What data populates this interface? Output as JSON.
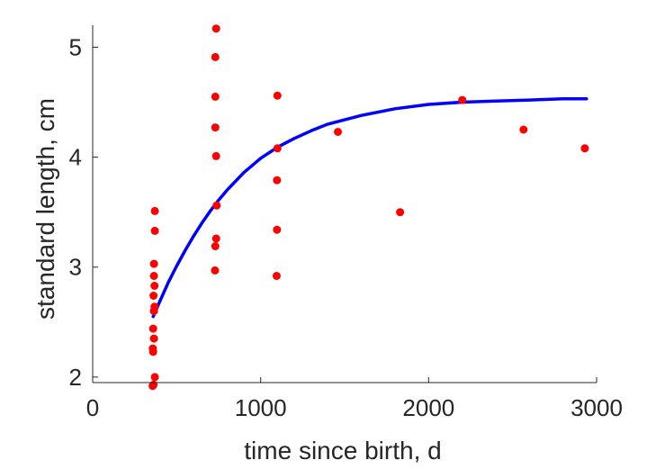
{
  "chart_data": {
    "type": "scatter",
    "xlabel": "time since birth, d",
    "ylabel": "standard length, cm",
    "xlim": [
      0,
      3000
    ],
    "ylim": [
      1.95,
      5.2
    ],
    "xticks": [
      "0",
      "1000",
      "2000",
      "3000"
    ],
    "yticks": [
      "2",
      "3",
      "4",
      "5"
    ],
    "grid": false,
    "box": false,
    "points_color": "#ff0000",
    "curve_color": "#0000ff",
    "points": [
      {
        "x": 370,
        "y": 3.51
      },
      {
        "x": 370,
        "y": 3.33
      },
      {
        "x": 365,
        "y": 3.03
      },
      {
        "x": 365,
        "y": 2.92
      },
      {
        "x": 368,
        "y": 2.83
      },
      {
        "x": 362,
        "y": 2.74
      },
      {
        "x": 368,
        "y": 2.64
      },
      {
        "x": 365,
        "y": 2.6
      },
      {
        "x": 360,
        "y": 2.44
      },
      {
        "x": 365,
        "y": 2.35
      },
      {
        "x": 358,
        "y": 2.26
      },
      {
        "x": 360,
        "y": 2.23
      },
      {
        "x": 370,
        "y": 2.0
      },
      {
        "x": 362,
        "y": 1.93
      },
      {
        "x": 357,
        "y": 1.92
      },
      {
        "x": 735,
        "y": 5.17
      },
      {
        "x": 730,
        "y": 4.91
      },
      {
        "x": 730,
        "y": 4.55
      },
      {
        "x": 730,
        "y": 4.27
      },
      {
        "x": 735,
        "y": 4.01
      },
      {
        "x": 738,
        "y": 3.56
      },
      {
        "x": 735,
        "y": 3.26
      },
      {
        "x": 730,
        "y": 3.19
      },
      {
        "x": 728,
        "y": 2.97
      },
      {
        "x": 1100,
        "y": 4.56
      },
      {
        "x": 1100,
        "y": 4.08
      },
      {
        "x": 1097,
        "y": 3.79
      },
      {
        "x": 1097,
        "y": 3.34
      },
      {
        "x": 1095,
        "y": 2.92
      },
      {
        "x": 1460,
        "y": 4.23
      },
      {
        "x": 1830,
        "y": 3.5
      },
      {
        "x": 2200,
        "y": 4.52
      },
      {
        "x": 2565,
        "y": 4.25
      },
      {
        "x": 2930,
        "y": 4.08
      }
    ],
    "fit_curve": {
      "x": [
        360,
        400,
        450,
        500,
        550,
        600,
        650,
        700,
        750,
        800,
        900,
        1000,
        1100,
        1200,
        1300,
        1400,
        1500,
        1600,
        1800,
        2000,
        2200,
        2400,
        2600,
        2800,
        2940
      ],
      "y": [
        2.55,
        2.69,
        2.86,
        3.01,
        3.15,
        3.28,
        3.4,
        3.51,
        3.61,
        3.7,
        3.86,
        3.99,
        4.09,
        4.17,
        4.24,
        4.3,
        4.34,
        4.38,
        4.44,
        4.48,
        4.5,
        4.51,
        4.52,
        4.53,
        4.53
      ]
    }
  }
}
